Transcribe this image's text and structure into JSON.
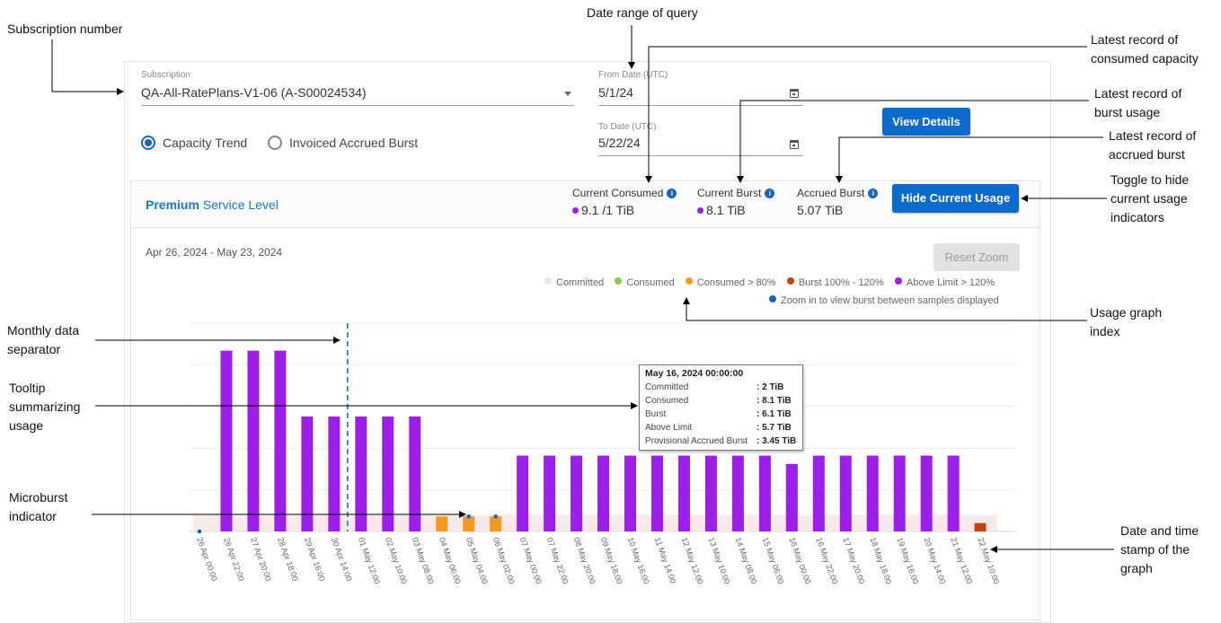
{
  "callouts": {
    "subscription_number": "Subscription number",
    "date_range_line1": "Date range of query",
    "latest_consumed_l1": "Latest record of",
    "latest_consumed_l2": "consumed capacity",
    "latest_burst_l1": "Latest record of",
    "latest_burst_l2": "burst usage",
    "latest_accrued_l1": "Latest record of",
    "latest_accrued_l2": "accrued burst",
    "toggle_l1": "Toggle to hide",
    "toggle_l2": "current usage",
    "toggle_l3": "indicators",
    "monthly_l1": "Monthly data",
    "monthly_l2": "separator",
    "tooltip_l1": "Tooltip",
    "tooltip_l2": "summarizing",
    "tooltip_l3": "usage",
    "microburst_l1": "Microburst",
    "microburst_l2": "indicator",
    "usage_index_l1": "Usage graph",
    "usage_index_l2": "index",
    "datestamp_l1": "Date and time",
    "datestamp_l2": "stamp of the",
    "datestamp_l3": "graph"
  },
  "form": {
    "subscription_label": "Subscription",
    "subscription_value": "QA-All-RatePlans-V1-06 (A-S00024534)",
    "from_label": "From Date (UTC)",
    "from_value": "5/1/24",
    "to_label": "To Date (UTC)",
    "to_value": "5/22/24",
    "view_details": "View Details",
    "radio_capacity": "Capacity Trend",
    "radio_invoiced": "Invoiced Accrued Burst",
    "selected_radio": "Capacity Trend"
  },
  "card": {
    "level_bold": "Premium",
    "level_rest": " Service Level",
    "current_consumed_label": "Current Consumed",
    "current_consumed_value": "9.1 /1 TiB",
    "current_burst_label": "Current Burst",
    "current_burst_value": "8.1 TiB",
    "accrued_burst_label": "Accrued Burst",
    "accrued_burst_value": "5.07 TiB",
    "hide_button": "Hide Current Usage",
    "date_range": "Apr 26, 2024 - May 23, 2024",
    "reset_zoom": "Reset Zoom",
    "info_glyph": "i"
  },
  "legend": {
    "committed": "Committed",
    "consumed": "Consumed",
    "consumed80": "Consumed > 80%",
    "burst": "Burst 100% - 120%",
    "above": "Above Limit > 120%",
    "zoom_hint": "Zoom in to view burst between samples displayed"
  },
  "colors": {
    "committed": "#e6e6e6",
    "consumed": "#8bc34a",
    "consumed80": "#f39a1e",
    "burst": "#c0440e",
    "above": "#9b1fe8",
    "microburst": "#1565c0",
    "separator": "#1976d2",
    "accent": "#0b6bcb"
  },
  "tooltip": {
    "title": "May 16, 2024 00:00:00",
    "rows": [
      {
        "k": "Committed",
        "v": ": 2 TiB"
      },
      {
        "k": "Consumed",
        "v": ": 8.1 TiB"
      },
      {
        "k": "Burst",
        "v": ": 6.1 TiB"
      },
      {
        "k": "Above Limit",
        "v": ": 5.7 TiB"
      },
      {
        "k": "Provisional Accrued Burst",
        "v": ": 3.45 TiB"
      }
    ]
  },
  "chart_data": {
    "type": "bar",
    "title": "",
    "xlabel": "",
    "ylabel": "",
    "unit": "TiB",
    "ylim": [
      0,
      25
    ],
    "yticks": [
      "0 TiB",
      "5 TiB",
      "10 TiB",
      "15 TiB",
      "20 TiB",
      "25 TiB"
    ],
    "ytick_values": [
      0,
      5,
      10,
      15,
      20,
      25
    ],
    "grid": true,
    "legend_placement": "top-right",
    "committed_band": 2,
    "month_separator_after": "30 Apr 14:00",
    "categories": [
      "26 Apr 00:00",
      "26 Apr 22:00",
      "27 Apr 20:00",
      "28 Apr 18:00",
      "29 Apr 16:00",
      "30 Apr 14:00",
      "01 May 12:00",
      "02 May 10:00",
      "03 May 08:00",
      "04 May 06:00",
      "05 May 04:00",
      "06 May 02:00",
      "07 May 00:00",
      "07 May 22:00",
      "08 May 20:00",
      "09 May 18:00",
      "10 May 16:00",
      "11 May 14:00",
      "12 May 12:00",
      "13 May 10:00",
      "14 May 08:00",
      "15 May 06:00",
      "16 May 00:00",
      "16 May 22:00",
      "17 May 20:00",
      "18 May 18:00",
      "19 May 16:00",
      "20 May 14:00",
      "21 May 12:00",
      "22 May 10:00"
    ],
    "values": [
      0,
      21.7,
      21.7,
      21.7,
      13.8,
      13.8,
      13.8,
      13.8,
      13.8,
      1.8,
      1.8,
      1.8,
      9.1,
      9.1,
      9.1,
      9.1,
      9.1,
      9.1,
      9.1,
      9.1,
      9.1,
      9.1,
      8.1,
      9.1,
      9.1,
      9.1,
      9.1,
      9.1,
      9.1,
      1
    ],
    "bar_status": [
      "none",
      "above",
      "above",
      "above",
      "above",
      "above",
      "above",
      "above",
      "above",
      "consumed80",
      "consumed80",
      "consumed80",
      "above",
      "above",
      "above",
      "above",
      "above",
      "above",
      "above",
      "above",
      "above",
      "above",
      "above",
      "above",
      "above",
      "above",
      "above",
      "above",
      "above",
      "burst"
    ],
    "microburst_markers": [
      "26 Apr 00:00",
      "05 May 04:00",
      "06 May 02:00"
    ]
  }
}
